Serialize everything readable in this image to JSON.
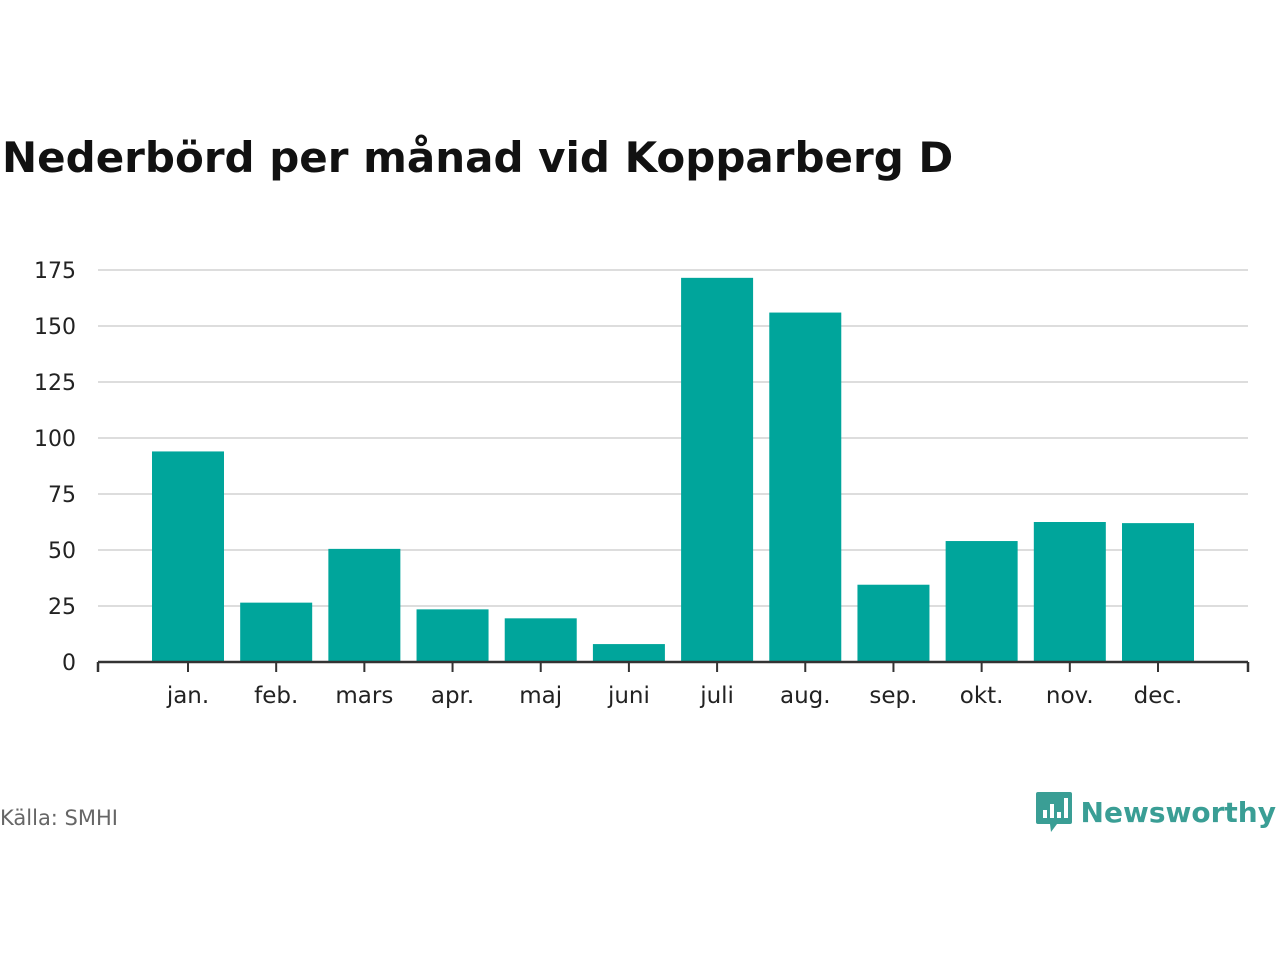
{
  "title": "Nederbörd per månad vid Kopparberg D",
  "source": "Källa: SMHI",
  "brand": {
    "name": "Newsworthy",
    "color": "#3a9e95",
    "icon": "newsworthy-logo-icon"
  },
  "chart_data": {
    "type": "bar",
    "title": "Nederbörd per månad vid Kopparberg D",
    "xlabel": "",
    "ylabel": "",
    "categories": [
      "jan.",
      "feb.",
      "mars",
      "apr.",
      "maj",
      "juni",
      "juli",
      "aug.",
      "sep.",
      "okt.",
      "nov.",
      "dec."
    ],
    "values": [
      94,
      26.5,
      50.5,
      23.5,
      19.5,
      8,
      171.5,
      156,
      34.5,
      54,
      62.5,
      62
    ],
    "ylim": [
      0,
      175
    ],
    "yticks": [
      0,
      25,
      50,
      75,
      100,
      125,
      150,
      175
    ],
    "grid": true,
    "legend": "none",
    "bar_color": "#00a59b",
    "grid_color": "#dddddd",
    "axis_color": "#333333"
  }
}
